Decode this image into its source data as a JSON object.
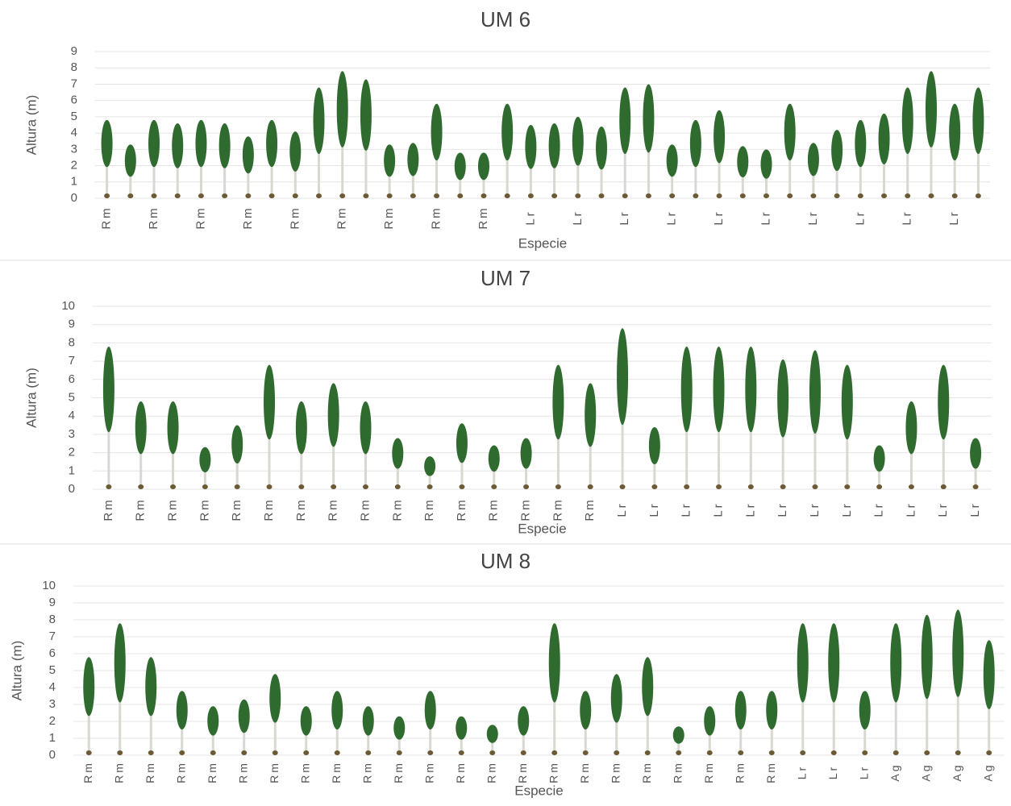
{
  "chart_data": [
    {
      "type": "tree",
      "title": "UM 6",
      "x_label": "Especie",
      "y_label": "Altura (m)",
      "color": "#2f6b2f",
      "grid": true,
      "categories": [
        "Rm",
        null,
        "Rm",
        null,
        "Rm",
        null,
        "Rm",
        null,
        "Rm",
        null,
        "Rm",
        null,
        "Rm",
        null,
        "Rm",
        null,
        "Rm",
        null,
        "Lr",
        null,
        "Lr",
        null,
        "Lr",
        null,
        "Lr",
        null,
        "Lr",
        null,
        "Lr",
        null,
        "Lr",
        null,
        "Lr",
        null,
        "Lr",
        null,
        "Lr",
        null
      ],
      "values": [
        4.8,
        3.3,
        4.8,
        4.6,
        4.8,
        4.6,
        3.8,
        4.8,
        4.1,
        6.8,
        7.8,
        7.3,
        3.3,
        3.4,
        5.8,
        2.8,
        2.8,
        5.8,
        4.5,
        4.6,
        5.0,
        4.4,
        6.8,
        7.0,
        3.3,
        4.8,
        5.4,
        3.2,
        3.0,
        5.8,
        3.4,
        4.2,
        4.8,
        5.2,
        6.8,
        7.8,
        5.8,
        6.8
      ],
      "ylim": [
        0,
        9
      ],
      "yticks": [
        0,
        1,
        2,
        3,
        4,
        5,
        6,
        7,
        8,
        9
      ]
    },
    {
      "type": "tree",
      "title": "UM 7",
      "x_label": "Especie",
      "y_label": "Altura (m)",
      "color": "#2f6b2f",
      "grid": true,
      "categories": [
        "Rm",
        "Rm",
        "Rm",
        "Rm",
        "Rm",
        "Rm",
        "Rm",
        "Rm",
        "Rm",
        "Rm",
        "Rm",
        "Rm",
        "Rm",
        "Rm",
        "Rm",
        "Rm",
        "Lr",
        "Lr",
        "Lr",
        "Lr",
        "Lr",
        "Lr",
        "Lr",
        "Lr",
        "Lr",
        "Lr",
        "Lr",
        "Lr"
      ],
      "values": [
        7.8,
        4.8,
        4.8,
        2.3,
        3.5,
        6.8,
        4.8,
        5.8,
        4.8,
        2.8,
        1.8,
        3.6,
        2.4,
        2.8,
        6.8,
        5.8,
        8.8,
        3.4,
        7.8,
        7.8,
        7.8,
        7.1,
        7.6,
        6.8,
        2.4,
        4.8,
        6.8,
        2.8
      ],
      "ylim": [
        0,
        10
      ],
      "yticks": [
        0,
        1,
        2,
        3,
        4,
        5,
        6,
        7,
        8,
        9,
        10
      ]
    },
    {
      "type": "tree",
      "title": "UM 8",
      "x_label": "Especie",
      "y_label": "Altura (m)",
      "color": "#2f6b2f",
      "grid": true,
      "categories": [
        "Rm",
        "Rm",
        "Rm",
        "Rm",
        "Rm",
        "Rm",
        "Rm",
        "Rm",
        "Rm",
        "Rm",
        "Rm",
        "Rm",
        "Rm",
        "Rm",
        "Rm",
        "Rm",
        "Rm",
        "Rm",
        "Rm",
        "Rm",
        "Rm",
        "Rm",
        "Rm",
        "Lr",
        "Lr",
        "Lr",
        "Ag",
        "Ag",
        "Ag",
        "Ag"
      ],
      "values": [
        5.8,
        7.8,
        5.8,
        3.8,
        2.9,
        3.3,
        4.8,
        2.9,
        3.8,
        2.9,
        2.3,
        3.8,
        2.3,
        1.8,
        2.9,
        7.8,
        3.8,
        4.8,
        5.8,
        1.7,
        2.9,
        3.8,
        3.8,
        7.8,
        7.8,
        3.8,
        7.8,
        8.3,
        8.6,
        6.8
      ],
      "ylim": [
        0,
        10
      ],
      "yticks": [
        0,
        1,
        2,
        3,
        4,
        5,
        6,
        7,
        8,
        9,
        10
      ]
    }
  ]
}
